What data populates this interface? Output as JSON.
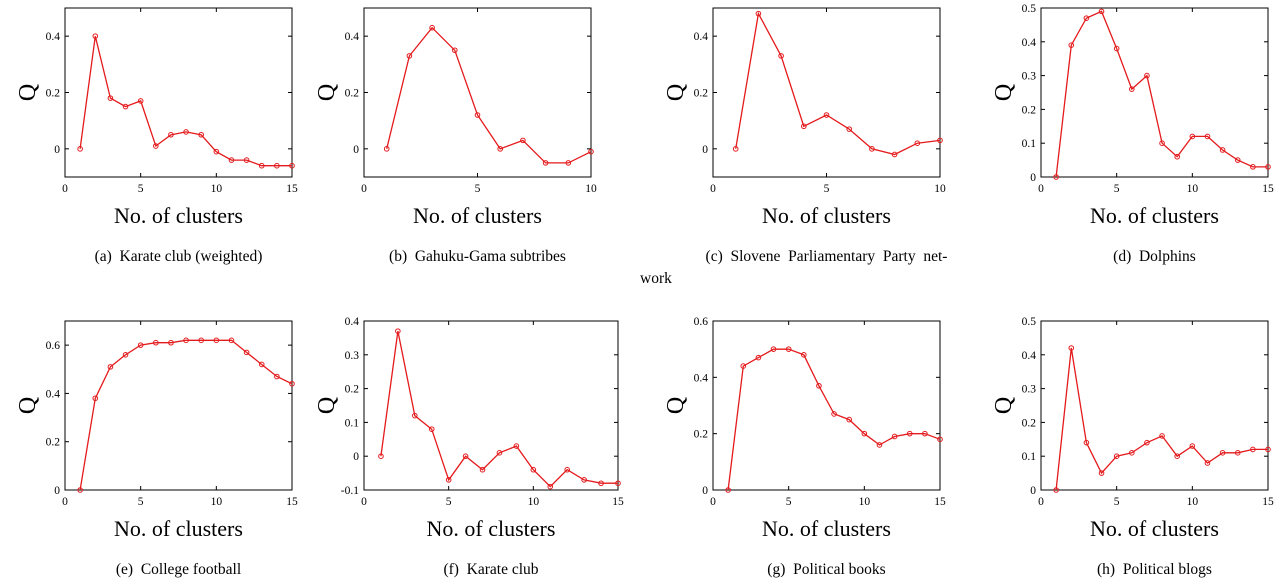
{
  "chart_data": [
    {
      "id": "a",
      "type": "line",
      "caption": "(a)  Karate club (weighted)",
      "xlabel": "No. of clusters",
      "ylabel": "Q",
      "xlim": [
        0,
        15
      ],
      "ylim": [
        -0.1,
        0.5
      ],
      "xticks": [
        0,
        5,
        10,
        15
      ],
      "yticks": [
        0,
        0.2,
        0.4
      ],
      "yticklabels": [
        "0",
        "0.2",
        "0.4"
      ],
      "series": [
        {
          "color": "#e41a1c",
          "x": [
            1,
            2,
            3,
            4,
            5,
            6,
            7,
            8,
            9,
            10,
            11,
            12,
            13,
            14,
            15
          ],
          "y": [
            0.0,
            0.4,
            0.18,
            0.15,
            0.17,
            0.01,
            0.05,
            0.06,
            0.05,
            -0.01,
            -0.04,
            -0.04,
            -0.06,
            -0.06,
            -0.06
          ]
        }
      ]
    },
    {
      "id": "b",
      "type": "line",
      "caption": "(b)  Gahuku-Gama subtribes",
      "xlabel": "No. of clusters",
      "ylabel": "Q",
      "xlim": [
        0,
        10
      ],
      "ylim": [
        -0.1,
        0.5
      ],
      "xticks": [
        0,
        5,
        10
      ],
      "yticks": [
        0,
        0.2,
        0.4
      ],
      "yticklabels": [
        "0",
        "0.2",
        "0.4"
      ],
      "series": [
        {
          "color": "#e41a1c",
          "x": [
            1,
            2,
            3,
            4,
            5,
            6,
            7,
            8,
            9,
            10
          ],
          "y": [
            0.0,
            0.33,
            0.43,
            0.35,
            0.12,
            0.0,
            0.03,
            -0.05,
            -0.05,
            -0.01
          ]
        }
      ]
    },
    {
      "id": "c",
      "type": "line",
      "caption": "(c)  Slovene  Parliamentary  Party  net-",
      "caption2": "work",
      "xlabel": "No. of clusters",
      "ylabel": "Q",
      "xlim": [
        0,
        10
      ],
      "ylim": [
        -0.1,
        0.5
      ],
      "xticks": [
        0,
        5,
        10
      ],
      "yticks": [
        0,
        0.2,
        0.4
      ],
      "yticklabels": [
        "0",
        "0.2",
        "0.4"
      ],
      "series": [
        {
          "color": "#e41a1c",
          "x": [
            1,
            2,
            3,
            4,
            5,
            6,
            7,
            8,
            9,
            10
          ],
          "y": [
            0.0,
            0.48,
            0.33,
            0.08,
            0.12,
            0.07,
            0.0,
            -0.02,
            0.02,
            0.03
          ]
        }
      ]
    },
    {
      "id": "d",
      "type": "line",
      "caption": "(d)  Dolphins",
      "xlabel": "No. of clusters",
      "ylabel": "Q",
      "xlim": [
        0,
        15
      ],
      "ylim": [
        0,
        0.5
      ],
      "xticks": [
        0,
        5,
        10,
        15
      ],
      "yticks": [
        0,
        0.1,
        0.2,
        0.3,
        0.4,
        0.5
      ],
      "yticklabels": [
        "0",
        "0.1",
        "0.2",
        "0.3",
        "0.4",
        "0.5"
      ],
      "series": [
        {
          "color": "#e41a1c",
          "x": [
            1,
            2,
            3,
            4,
            5,
            6,
            7,
            8,
            9,
            10,
            11,
            12,
            13,
            14,
            15
          ],
          "y": [
            0.0,
            0.39,
            0.47,
            0.49,
            0.38,
            0.26,
            0.3,
            0.1,
            0.06,
            0.12,
            0.12,
            0.08,
            0.05,
            0.03,
            0.03
          ]
        }
      ]
    },
    {
      "id": "e",
      "type": "line",
      "caption": "(e)  College football",
      "xlabel": "No. of clusters",
      "ylabel": "Q",
      "xlim": [
        0,
        15
      ],
      "ylim": [
        0,
        0.7
      ],
      "xticks": [
        0,
        5,
        10,
        15
      ],
      "yticks": [
        0,
        0.2,
        0.4,
        0.6
      ],
      "yticklabels": [
        "0",
        "0.2",
        "0.4",
        "0.6"
      ],
      "series": [
        {
          "color": "#e41a1c",
          "x": [
            1,
            2,
            3,
            4,
            5,
            6,
            7,
            8,
            9,
            10,
            11,
            12,
            13,
            14,
            15
          ],
          "y": [
            0.0,
            0.38,
            0.51,
            0.56,
            0.6,
            0.61,
            0.61,
            0.62,
            0.62,
            0.62,
            0.62,
            0.57,
            0.52,
            0.47,
            0.44
          ]
        }
      ]
    },
    {
      "id": "f",
      "type": "line",
      "caption": "(f)  Karate club",
      "xlabel": "No. of clusters",
      "ylabel": "Q",
      "xlim": [
        0,
        15
      ],
      "ylim": [
        -0.1,
        0.4
      ],
      "xticks": [
        0,
        5,
        10,
        15
      ],
      "yticks": [
        -0.1,
        0,
        0.1,
        0.2,
        0.3,
        0.4
      ],
      "yticklabels": [
        "-0.1",
        "0",
        "0.1",
        "0.2",
        "0.3",
        "0.4"
      ],
      "series": [
        {
          "color": "#e41a1c",
          "x": [
            1,
            2,
            3,
            4,
            5,
            6,
            7,
            8,
            9,
            10,
            11,
            12,
            13,
            14,
            15
          ],
          "y": [
            0.0,
            0.37,
            0.12,
            0.08,
            -0.07,
            0.0,
            -0.04,
            0.01,
            0.03,
            -0.04,
            -0.09,
            -0.04,
            -0.07,
            -0.08,
            -0.08
          ]
        }
      ]
    },
    {
      "id": "g",
      "type": "line",
      "caption": "(g)  Political books",
      "xlabel": "No. of clusters",
      "ylabel": "Q",
      "xlim": [
        0,
        15
      ],
      "ylim": [
        0,
        0.6
      ],
      "xticks": [
        0,
        5,
        10,
        15
      ],
      "yticks": [
        0,
        0.2,
        0.4,
        0.6
      ],
      "yticklabels": [
        "0",
        "0.2",
        "0.4",
        "0.6"
      ],
      "series": [
        {
          "color": "#e41a1c",
          "x": [
            1,
            2,
            3,
            4,
            5,
            6,
            7,
            8,
            9,
            10,
            11,
            12,
            13,
            14,
            15
          ],
          "y": [
            0.0,
            0.44,
            0.47,
            0.5,
            0.5,
            0.48,
            0.37,
            0.27,
            0.25,
            0.2,
            0.16,
            0.19,
            0.2,
            0.2,
            0.18
          ]
        }
      ]
    },
    {
      "id": "h",
      "type": "line",
      "caption": "(h)  Political blogs",
      "xlabel": "No. of clusters",
      "ylabel": "Q",
      "xlim": [
        0,
        15
      ],
      "ylim": [
        0,
        0.5
      ],
      "xticks": [
        0,
        5,
        10,
        15
      ],
      "yticks": [
        0,
        0.1,
        0.2,
        0.3,
        0.4,
        0.5
      ],
      "yticklabels": [
        "0",
        "0.1",
        "0.2",
        "0.3",
        "0.4",
        "0.5"
      ],
      "series": [
        {
          "color": "#e41a1c",
          "x": [
            1,
            2,
            3,
            4,
            5,
            6,
            7,
            8,
            9,
            10,
            11,
            12,
            13,
            14,
            15
          ],
          "y": [
            0.0,
            0.42,
            0.14,
            0.05,
            0.1,
            0.11,
            0.14,
            0.16,
            0.1,
            0.13,
            0.08,
            0.11,
            0.11,
            0.12,
            0.12
          ]
        }
      ]
    }
  ]
}
